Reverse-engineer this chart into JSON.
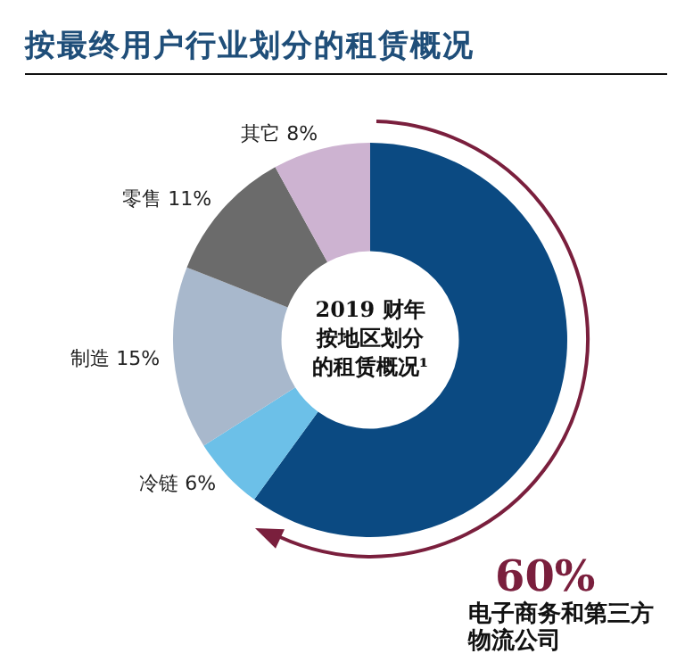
{
  "chart_data": {
    "type": "donut",
    "title": "按最终用户行业划分的租赁概况",
    "categories": [
      "电子商务和第三方物流公司",
      "冷链",
      "制造",
      "零售",
      "其它"
    ],
    "values": [
      60,
      6,
      15,
      11,
      8
    ],
    "value_labels": [
      "60%",
      "6%",
      "15%",
      "11%",
      "8%"
    ],
    "colors": [
      "#0b4a82",
      "#6cc0e8",
      "#a8b8cc",
      "#6b6b6b",
      "#cdb3d1"
    ],
    "annotations": [
      "2019 财年按地区划分的租赁概况¹"
    ],
    "legend": false
  }
}
